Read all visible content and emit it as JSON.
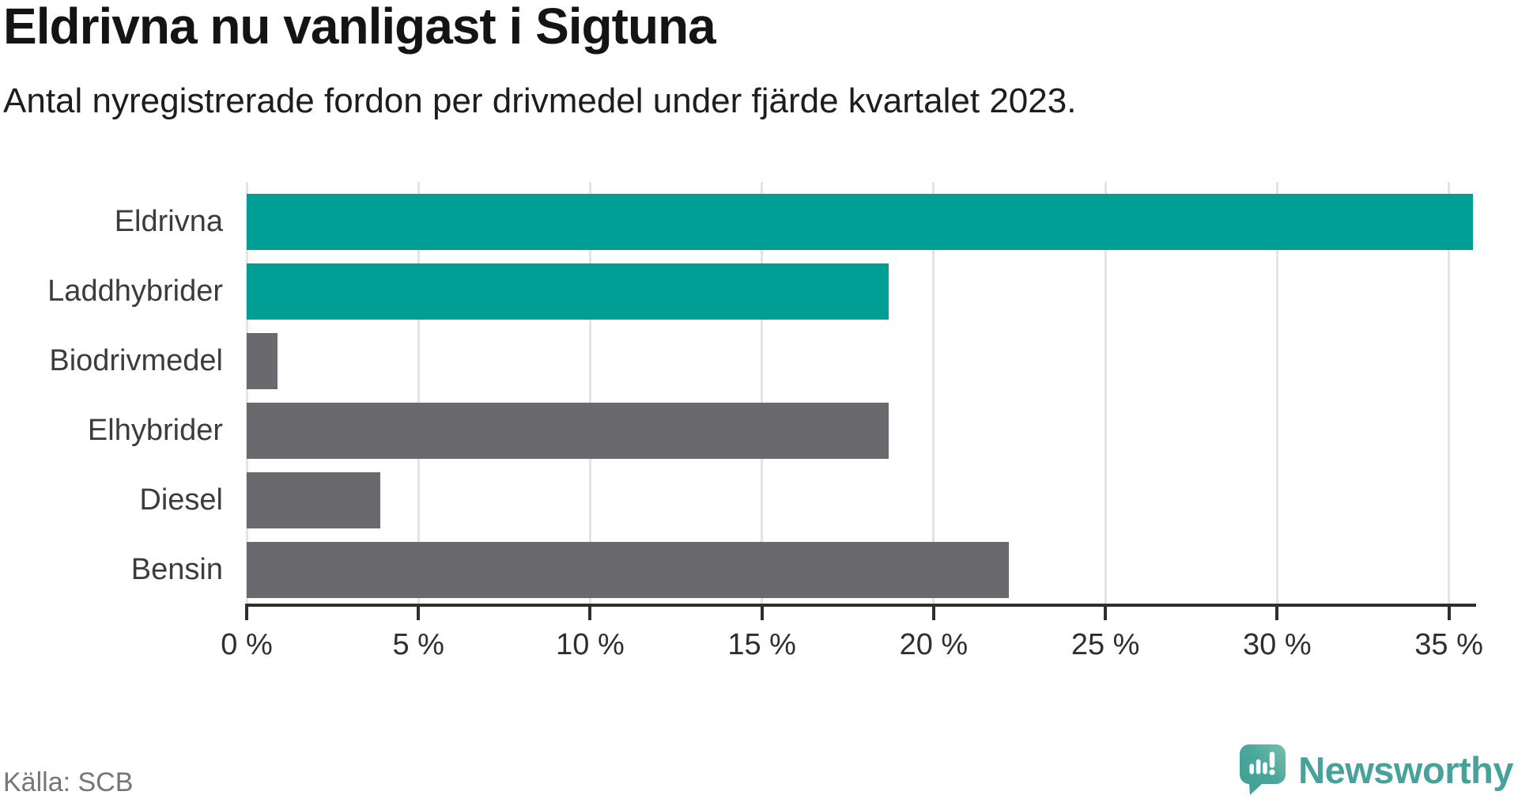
{
  "header": {
    "title": "Eldrivna nu vanligast i Sigtuna",
    "subtitle": "Antal nyregistrerade fordon per drivmedel under fjärde kvartalet 2023."
  },
  "chart_data": {
    "type": "bar",
    "orientation": "horizontal",
    "title": "Eldrivna nu vanligast i Sigtuna",
    "subtitle": "Antal nyregistrerade fordon per drivmedel under fjärde kvartalet 2023.",
    "categories": [
      "Eldrivna",
      "Laddhybrider",
      "Biodrivmedel",
      "Elhybrider",
      "Diesel",
      "Bensin"
    ],
    "values": [
      35.7,
      18.7,
      0.9,
      18.7,
      3.9,
      22.2
    ],
    "unit": "%",
    "xlim": [
      0,
      35.7
    ],
    "x_ticks": [
      0,
      5,
      10,
      15,
      20,
      25,
      30,
      35
    ],
    "x_tick_labels": [
      "0 %",
      "5 %",
      "10 %",
      "15 %",
      "20 %",
      "25 %",
      "30 %",
      "35 %"
    ],
    "grid": true,
    "highlight_color": "#009e95",
    "default_color": "#6a6a6e",
    "bar_colors": [
      "#009e95",
      "#009e95",
      "#6a6a6e",
      "#6a6a6e",
      "#6a6a6e",
      "#6a6a6e"
    ],
    "axis_color": "#2f2f2f",
    "gridline_color": "#e3e3e3"
  },
  "footer": {
    "source": "Källa: SCB",
    "brand_name": "Newsworthy",
    "brand_color": "#46a29b"
  }
}
